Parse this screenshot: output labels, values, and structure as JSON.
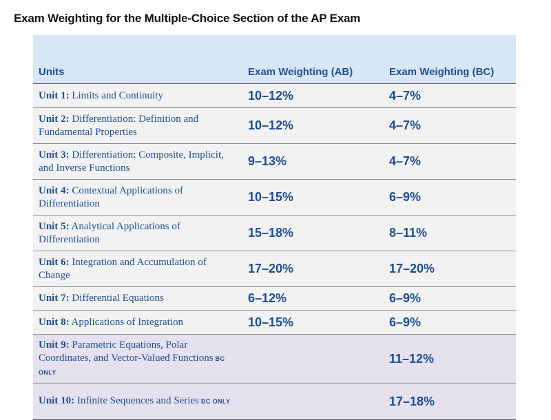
{
  "title": "Exam Weighting for the Multiple-Choice Section of the AP Exam",
  "headers": {
    "units": "Units",
    "ab": "Exam Weighting (AB)",
    "bc": "Exam Weighting (BC)"
  },
  "colors": {
    "text_blue": "#1f4e8c",
    "header_bg": "#d8e7f7",
    "row_bg": "#f2f2f2",
    "bc_row_bg": "#e5e1ee"
  },
  "rows": [
    {
      "unit": "Unit 1:",
      "name": "Limits and Continuity",
      "bc_only": "",
      "ab": "10–12%",
      "bc": "4–7%"
    },
    {
      "unit": "Unit 2:",
      "name": "Differentiation: Definition and Fundamental Properties",
      "bc_only": "",
      "ab": "10–12%",
      "bc": "4–7%"
    },
    {
      "unit": "Unit 3:",
      "name": "Differentiation: Composite, Implicit, and Inverse Functions",
      "bc_only": "",
      "ab": "9–13%",
      "bc": "4–7%"
    },
    {
      "unit": "Unit 4:",
      "name": "Contextual Applications of Differentiation",
      "bc_only": "",
      "ab": "10–15%",
      "bc": "6–9%"
    },
    {
      "unit": "Unit 5:",
      "name": "Analytical Applications of Differentiation",
      "bc_only": "",
      "ab": "15–18%",
      "bc": "8–11%"
    },
    {
      "unit": "Unit 6:",
      "name": "Integration and Accumulation of Change",
      "bc_only": "",
      "ab": "17–20%",
      "bc": "17–20%"
    },
    {
      "unit": "Unit 7:",
      "name": "Differential Equations",
      "bc_only": "",
      "ab": "6–12%",
      "bc": "6–9%"
    },
    {
      "unit": "Unit 8:",
      "name": "Applications of Integration",
      "bc_only": "",
      "ab": "10–15%",
      "bc": "6–9%"
    },
    {
      "unit": "Unit 9:",
      "name": "Parametric Equations, Polar Coordinates, and Vector-Valued Functions",
      "bc_only": "BC ONLY",
      "ab": "",
      "bc": "11–12%"
    },
    {
      "unit": "Unit 10:",
      "name": "Infinite Sequences and Series",
      "bc_only": "BC ONLY",
      "ab": "",
      "bc": "17–18%"
    }
  ]
}
